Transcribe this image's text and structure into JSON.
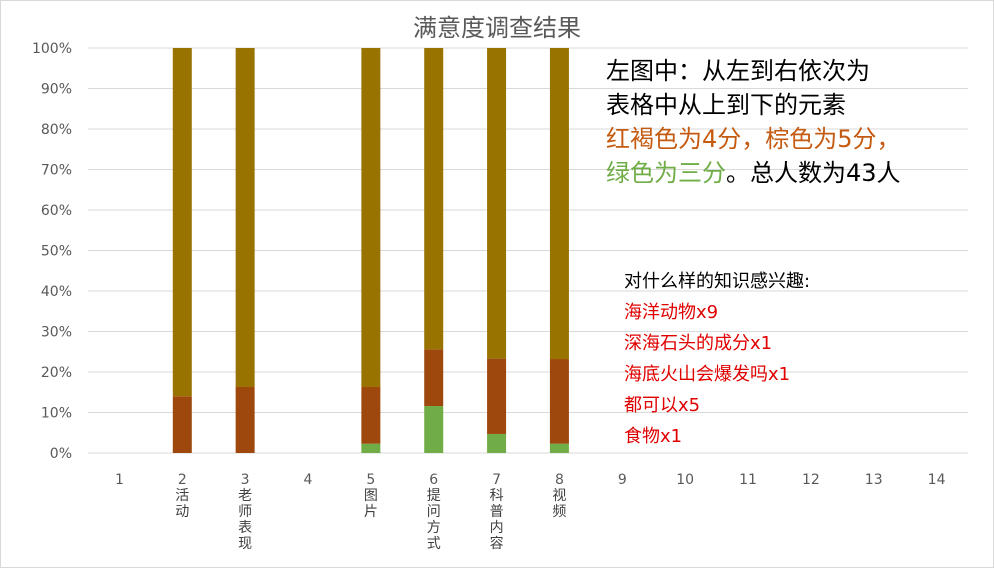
{
  "chart_data": {
    "type": "bar",
    "stacked": "percent",
    "title": "满意度调查结果",
    "categories": [
      "1",
      "2",
      "3",
      "4",
      "5",
      "6",
      "7",
      "8",
      "9",
      "10",
      "11",
      "12",
      "13",
      "14"
    ],
    "category_labels": [
      "",
      "活动",
      "老师表现",
      "",
      "图片",
      "提问方式",
      "科普内容",
      "视频",
      "",
      "",
      "",
      "",
      "",
      ""
    ],
    "y_ticks": [
      "0%",
      "10%",
      "20%",
      "30%",
      "40%",
      "50%",
      "60%",
      "70%",
      "80%",
      "90%",
      "100%"
    ],
    "ylim": [
      0,
      100
    ],
    "series": [
      {
        "color": "#70ad47",
        "values": [
          null,
          0,
          0,
          null,
          2.3,
          11.6,
          4.7,
          2.3,
          null,
          null,
          null,
          null,
          null,
          null
        ]
      },
      {
        "color": "#9e480e",
        "values": [
          null,
          14.0,
          16.3,
          null,
          14.0,
          14.0,
          18.6,
          20.9,
          null,
          null,
          null,
          null,
          null,
          null
        ]
      },
      {
        "color": "#997300",
        "values": [
          null,
          86.0,
          83.7,
          null,
          83.7,
          74.4,
          76.7,
          76.8,
          null,
          null,
          null,
          null,
          null,
          null
        ]
      }
    ],
    "grid": true
  },
  "notes": {
    "line1": "左图中：从左到右依次为",
    "line2": "表格中从上到下的元素",
    "line3a": "红褐色为4分，",
    "line3b": "棕色为5分，",
    "line4a": "绿色为三分",
    "line4b": "。总人数为43人",
    "colors": {
      "redbrown": "#c55a11",
      "brown": "#c55a11",
      "green": "#70ad47"
    }
  },
  "interests": {
    "header": "对什么样的知识感兴趣:",
    "items": [
      "海洋动物x9",
      "深海石头的成分x1",
      "海底火山会爆发吗x1",
      "都可以x5",
      "食物x1"
    ]
  }
}
